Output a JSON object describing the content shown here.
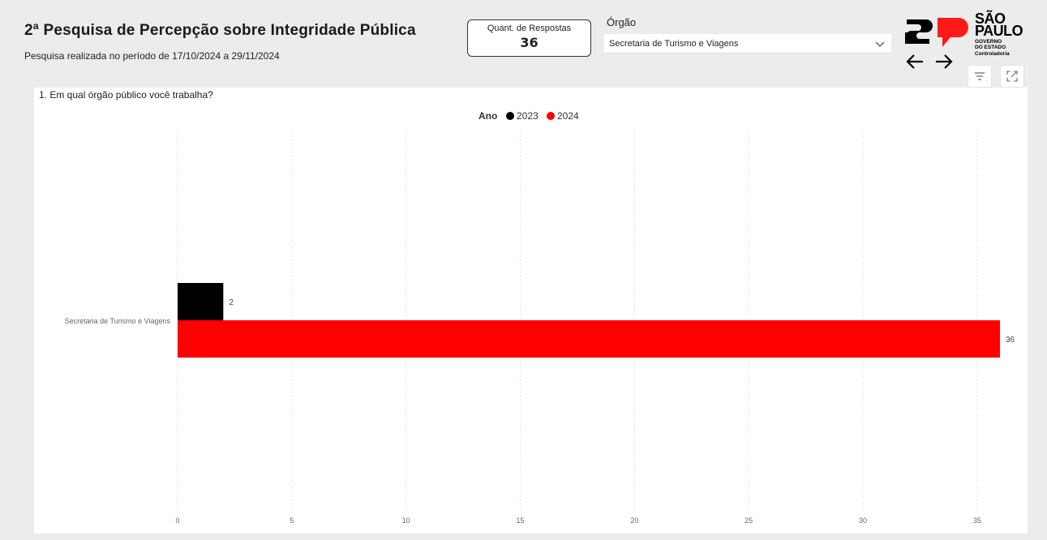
{
  "header": {
    "title": "2ª Pesquisa de Percepção sobre Integridade Pública",
    "subtitle": "Pesquisa realizada no período de 17/10/2024 a 29/11/2024"
  },
  "card": {
    "label": "Quant. de Respostas",
    "value": "36"
  },
  "slicer": {
    "label": "Órgão",
    "value": "Secretaria de Turismo e Viagens"
  },
  "logo": {
    "big_line1": "SÃO",
    "big_line2": "PAULO",
    "small_line1": "GOVERNO",
    "small_line2": "DO ESTADO",
    "small_line3": "Controladoria"
  },
  "visual": {
    "title": "1. Em qual órgão público você trabalha?"
  },
  "colors": {
    "series_2023": "#000000",
    "series_2024": "#ff0000"
  },
  "chart_data": {
    "type": "bar",
    "orientation": "horizontal",
    "title": "1. Em qual órgão público você trabalha?",
    "legend_title": "Ano",
    "legend_position": "top-center",
    "categories": [
      "Secretaria de Turismo e Viagens"
    ],
    "series": [
      {
        "name": "2023",
        "values": [
          2
        ],
        "color": "#000000"
      },
      {
        "name": "2024",
        "values": [
          36
        ],
        "color": "#ff0000"
      }
    ],
    "xlim": [
      0,
      36
    ],
    "x_ticks": [
      0,
      5,
      10,
      15,
      20,
      25,
      30,
      35
    ],
    "grid": "vertical-dotted"
  }
}
